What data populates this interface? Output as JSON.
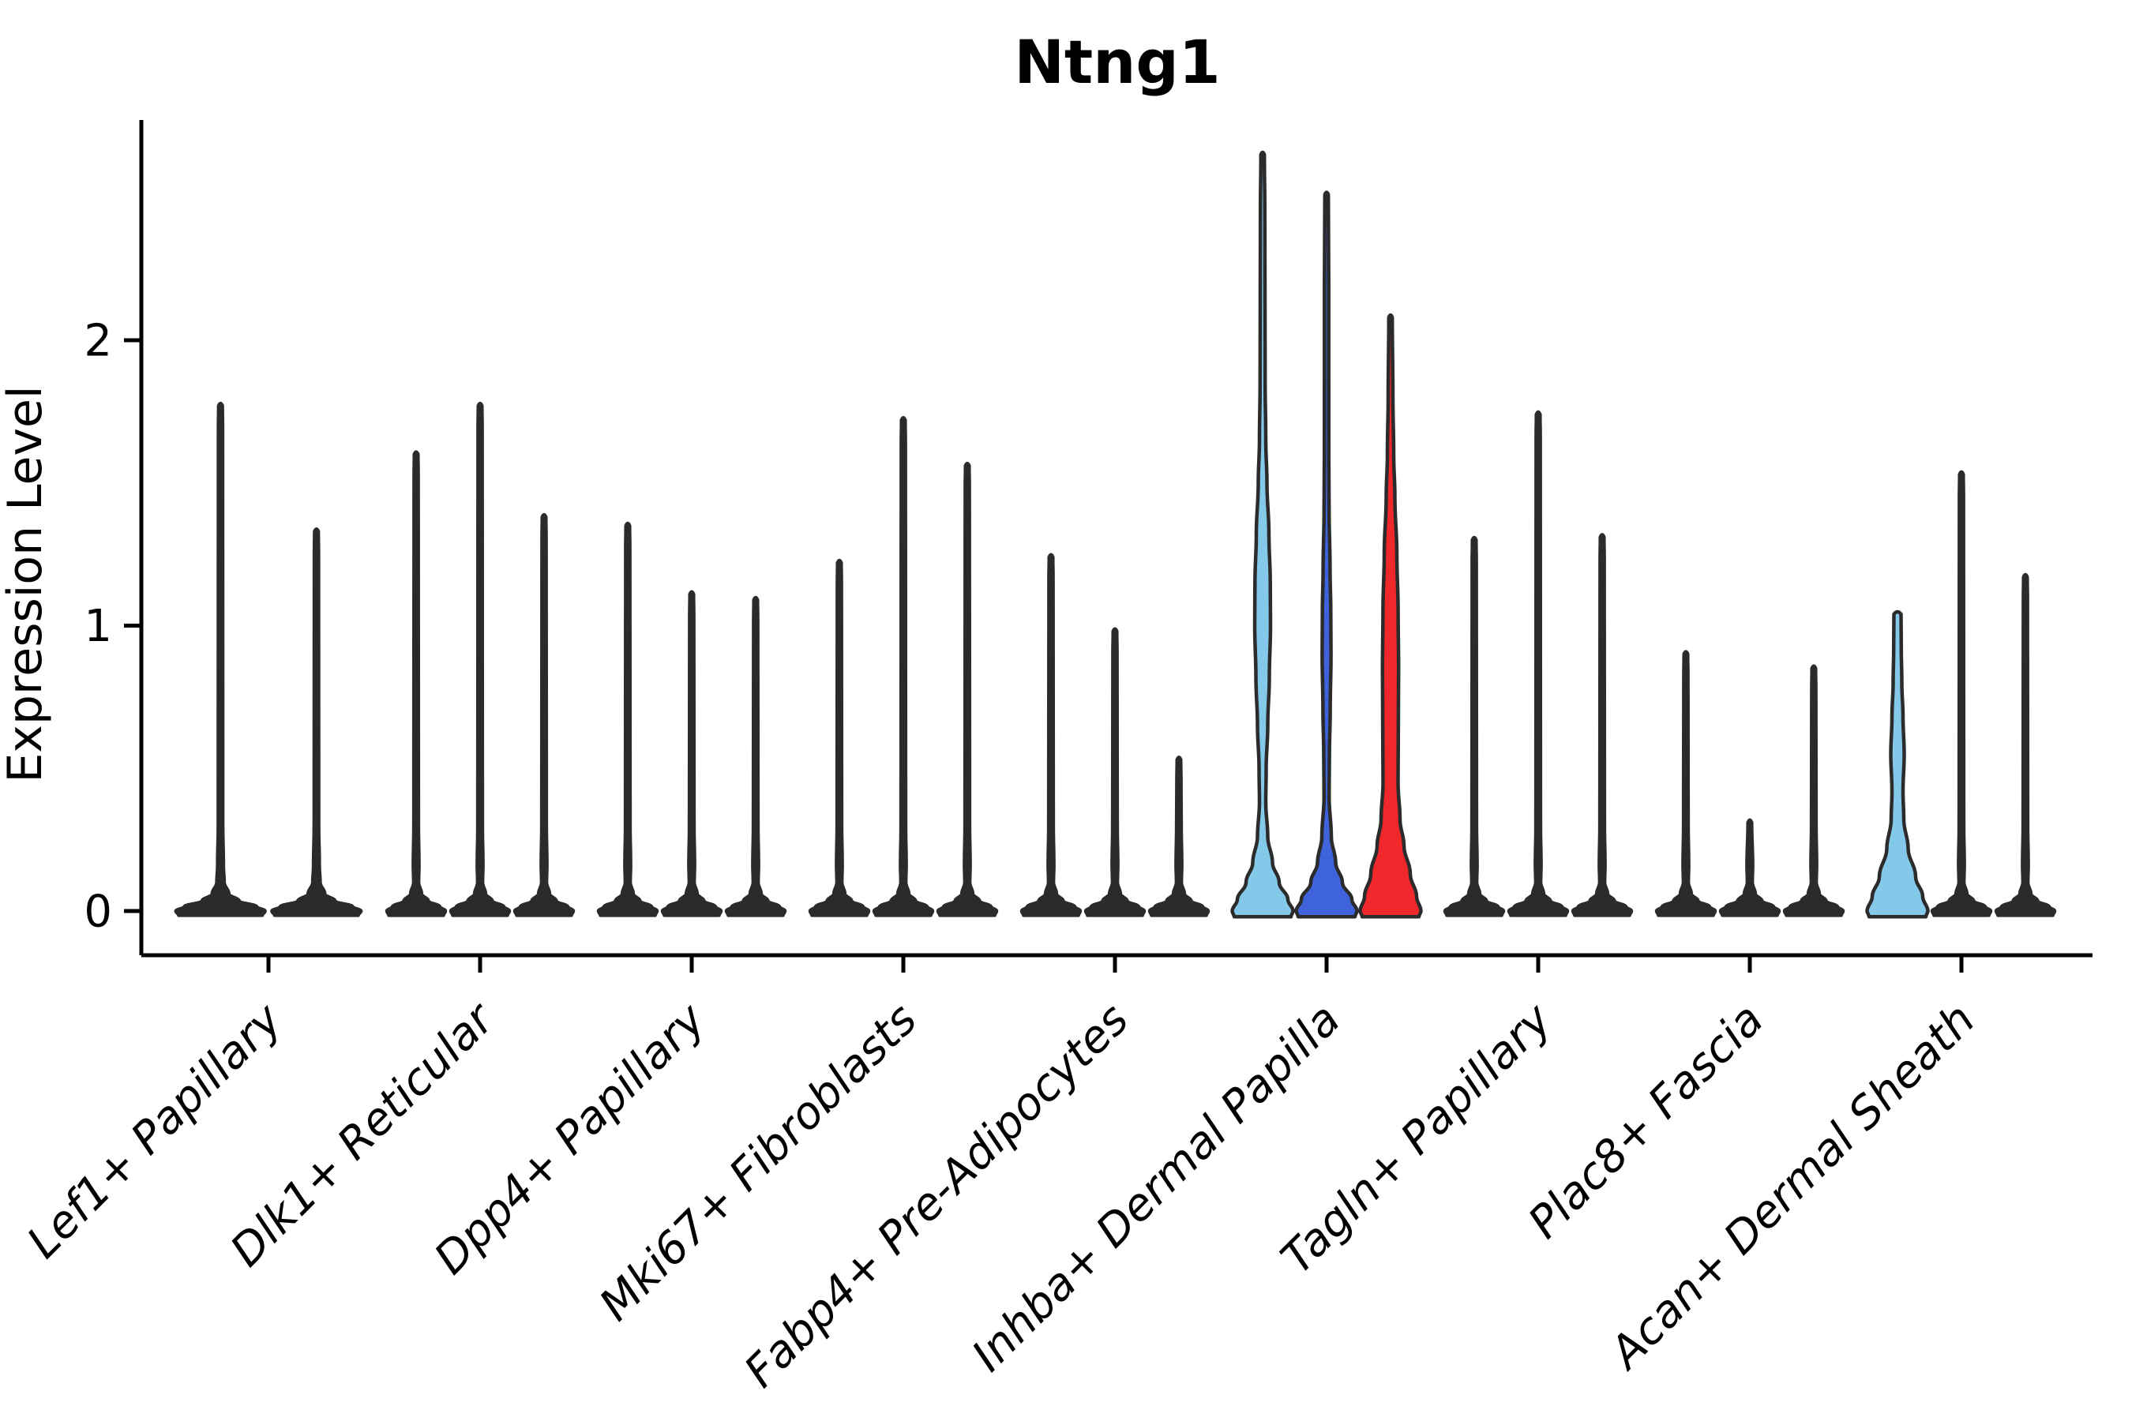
{
  "title": "Ntng1",
  "y_axis": {
    "label": "Expression Level",
    "tick_labels": [
      "0",
      "1",
      "2"
    ],
    "tick_values": [
      0,
      1,
      2
    ]
  },
  "x_axis": {
    "categories": [
      "Lef1+ Papillary",
      "Dlk1+ Reticular",
      "Dpp4+ Papillary",
      "Mki67+ Fibroblasts",
      "Fabp4+ Pre-Adipocytes",
      "Inhba+ Dermal Papilla",
      "Tagln+ Papillary",
      "Plac8+ Fascia",
      "Acan+ Dermal Sheath"
    ]
  },
  "colors": {
    "light_blue": "#85C9EA",
    "dark_blue": "#3E63DB",
    "red": "#F1282B",
    "spike": "#2B2B2B",
    "outline": "#2B2B2B",
    "axis": "#000000",
    "background": "#FFFFFF"
  },
  "chart_data": {
    "type": "violin",
    "title": "Ntng1",
    "xlabel": "",
    "ylabel": "Expression Level",
    "ylim": [
      -0.06,
      2.92
    ],
    "yticks": [
      0,
      1,
      2
    ],
    "grid": false,
    "legend": false,
    "groups": [
      {
        "category": "Lef1+ Papillary",
        "violins": [
          {
            "shape": "spike",
            "color": "spike",
            "max_expression": 1.77
          },
          {
            "shape": "spike",
            "color": "spike",
            "max_expression": 1.33
          }
        ]
      },
      {
        "category": "Dlk1+ Reticular",
        "violins": [
          {
            "shape": "spike",
            "color": "spike",
            "max_expression": 1.6
          },
          {
            "shape": "spike",
            "color": "spike",
            "max_expression": 1.77
          },
          {
            "shape": "spike",
            "color": "spike",
            "max_expression": 1.38
          }
        ]
      },
      {
        "category": "Dpp4+ Papillary",
        "violins": [
          {
            "shape": "spike",
            "color": "spike",
            "max_expression": 1.35
          },
          {
            "shape": "spike",
            "color": "spike",
            "max_expression": 1.11
          },
          {
            "shape": "spike",
            "color": "spike",
            "max_expression": 1.09
          }
        ]
      },
      {
        "category": "Mki67+ Fibroblasts",
        "violins": [
          {
            "shape": "spike",
            "color": "spike",
            "max_expression": 1.22
          },
          {
            "shape": "spike",
            "color": "spike",
            "max_expression": 1.72
          },
          {
            "shape": "spike",
            "color": "spike",
            "max_expression": 1.56
          }
        ]
      },
      {
        "category": "Fabp4+ Pre-Adipocytes",
        "violins": [
          {
            "shape": "spike",
            "color": "spike",
            "max_expression": 1.24
          },
          {
            "shape": "spike",
            "color": "spike",
            "max_expression": 0.98
          },
          {
            "shape": "spike",
            "color": "spike",
            "max_expression": 0.53
          }
        ]
      },
      {
        "category": "Inhba+ Dermal Papilla",
        "violins": [
          {
            "shape": "violin",
            "color": "light_blue",
            "max_expression": 2.65,
            "profile": [
              [
                -0.02,
                36
              ],
              [
                0,
                38.5
              ],
              [
                0.04,
                32
              ],
              [
                0.1,
                21
              ],
              [
                0.17,
                12.5
              ],
              [
                0.26,
                6.5
              ],
              [
                0.38,
                4
              ],
              [
                0.5,
                4.5
              ],
              [
                0.65,
                6.5
              ],
              [
                0.82,
                8.5
              ],
              [
                1.0,
                10
              ],
              [
                1.15,
                9.7
              ],
              [
                1.32,
                8
              ],
              [
                1.5,
                5.5
              ],
              [
                1.65,
                4
              ],
              [
                1.85,
                3.2
              ],
              [
                2.15,
                3
              ],
              [
                2.45,
                2.8
              ],
              [
                2.65,
                2.2
              ]
            ]
          },
          {
            "shape": "violin",
            "color": "dark_blue",
            "max_expression": 2.51,
            "profile": [
              [
                -0.02,
                36
              ],
              [
                0,
                38.5
              ],
              [
                0.04,
                32
              ],
              [
                0.1,
                20
              ],
              [
                0.17,
                11.5
              ],
              [
                0.26,
                6
              ],
              [
                0.4,
                3.2
              ],
              [
                0.55,
                3.6
              ],
              [
                0.7,
                4.6
              ],
              [
                0.9,
                5.6
              ],
              [
                1.05,
                5.3
              ],
              [
                1.2,
                4.4
              ],
              [
                1.4,
                3.2
              ],
              [
                1.6,
                2.8
              ],
              [
                1.9,
                2.7
              ],
              [
                2.2,
                2.7
              ],
              [
                2.51,
                2.2
              ]
            ]
          },
          {
            "shape": "violin",
            "color": "red",
            "max_expression": 2.08,
            "profile": [
              [
                -0.02,
                36
              ],
              [
                0,
                38.5
              ],
              [
                0.05,
                33
              ],
              [
                0.13,
                25
              ],
              [
                0.23,
                17
              ],
              [
                0.32,
                12
              ],
              [
                0.45,
                9.5
              ],
              [
                0.6,
                9.8
              ],
              [
                0.85,
                10.2
              ],
              [
                1.05,
                9.6
              ],
              [
                1.25,
                8
              ],
              [
                1.45,
                5.5
              ],
              [
                1.6,
                4
              ],
              [
                1.8,
                3
              ],
              [
                2.08,
                2.2
              ]
            ]
          }
        ]
      },
      {
        "category": "Tagln+ Papillary",
        "violins": [
          {
            "shape": "spike",
            "color": "spike",
            "max_expression": 1.3
          },
          {
            "shape": "spike",
            "color": "spike",
            "max_expression": 1.74
          },
          {
            "shape": "spike",
            "color": "spike",
            "max_expression": 1.31
          }
        ]
      },
      {
        "category": "Plac8+ Fascia",
        "violins": [
          {
            "shape": "spike",
            "color": "spike",
            "max_expression": 0.9
          },
          {
            "shape": "spike",
            "color": "spike",
            "max_expression": 0.31
          },
          {
            "shape": "spike",
            "color": "spike",
            "max_expression": 0.85
          }
        ]
      },
      {
        "category": "Acan+ Dermal Sheath",
        "violins": [
          {
            "shape": "violin",
            "color": "light_blue",
            "max_expression": 1.04,
            "profile": [
              [
                -0.02,
                36
              ],
              [
                0,
                38.5
              ],
              [
                0.05,
                32
              ],
              [
                0.12,
                23
              ],
              [
                0.22,
                13.5
              ],
              [
                0.32,
                8
              ],
              [
                0.42,
                7
              ],
              [
                0.55,
                8.5
              ],
              [
                0.68,
                7
              ],
              [
                0.8,
                5.5
              ],
              [
                0.92,
                4.8
              ],
              [
                1.04,
                4.5
              ]
            ]
          },
          {
            "shape": "spike",
            "color": "spike",
            "max_expression": 1.53
          },
          {
            "shape": "spike",
            "color": "spike",
            "max_expression": 1.17
          }
        ]
      }
    ]
  }
}
